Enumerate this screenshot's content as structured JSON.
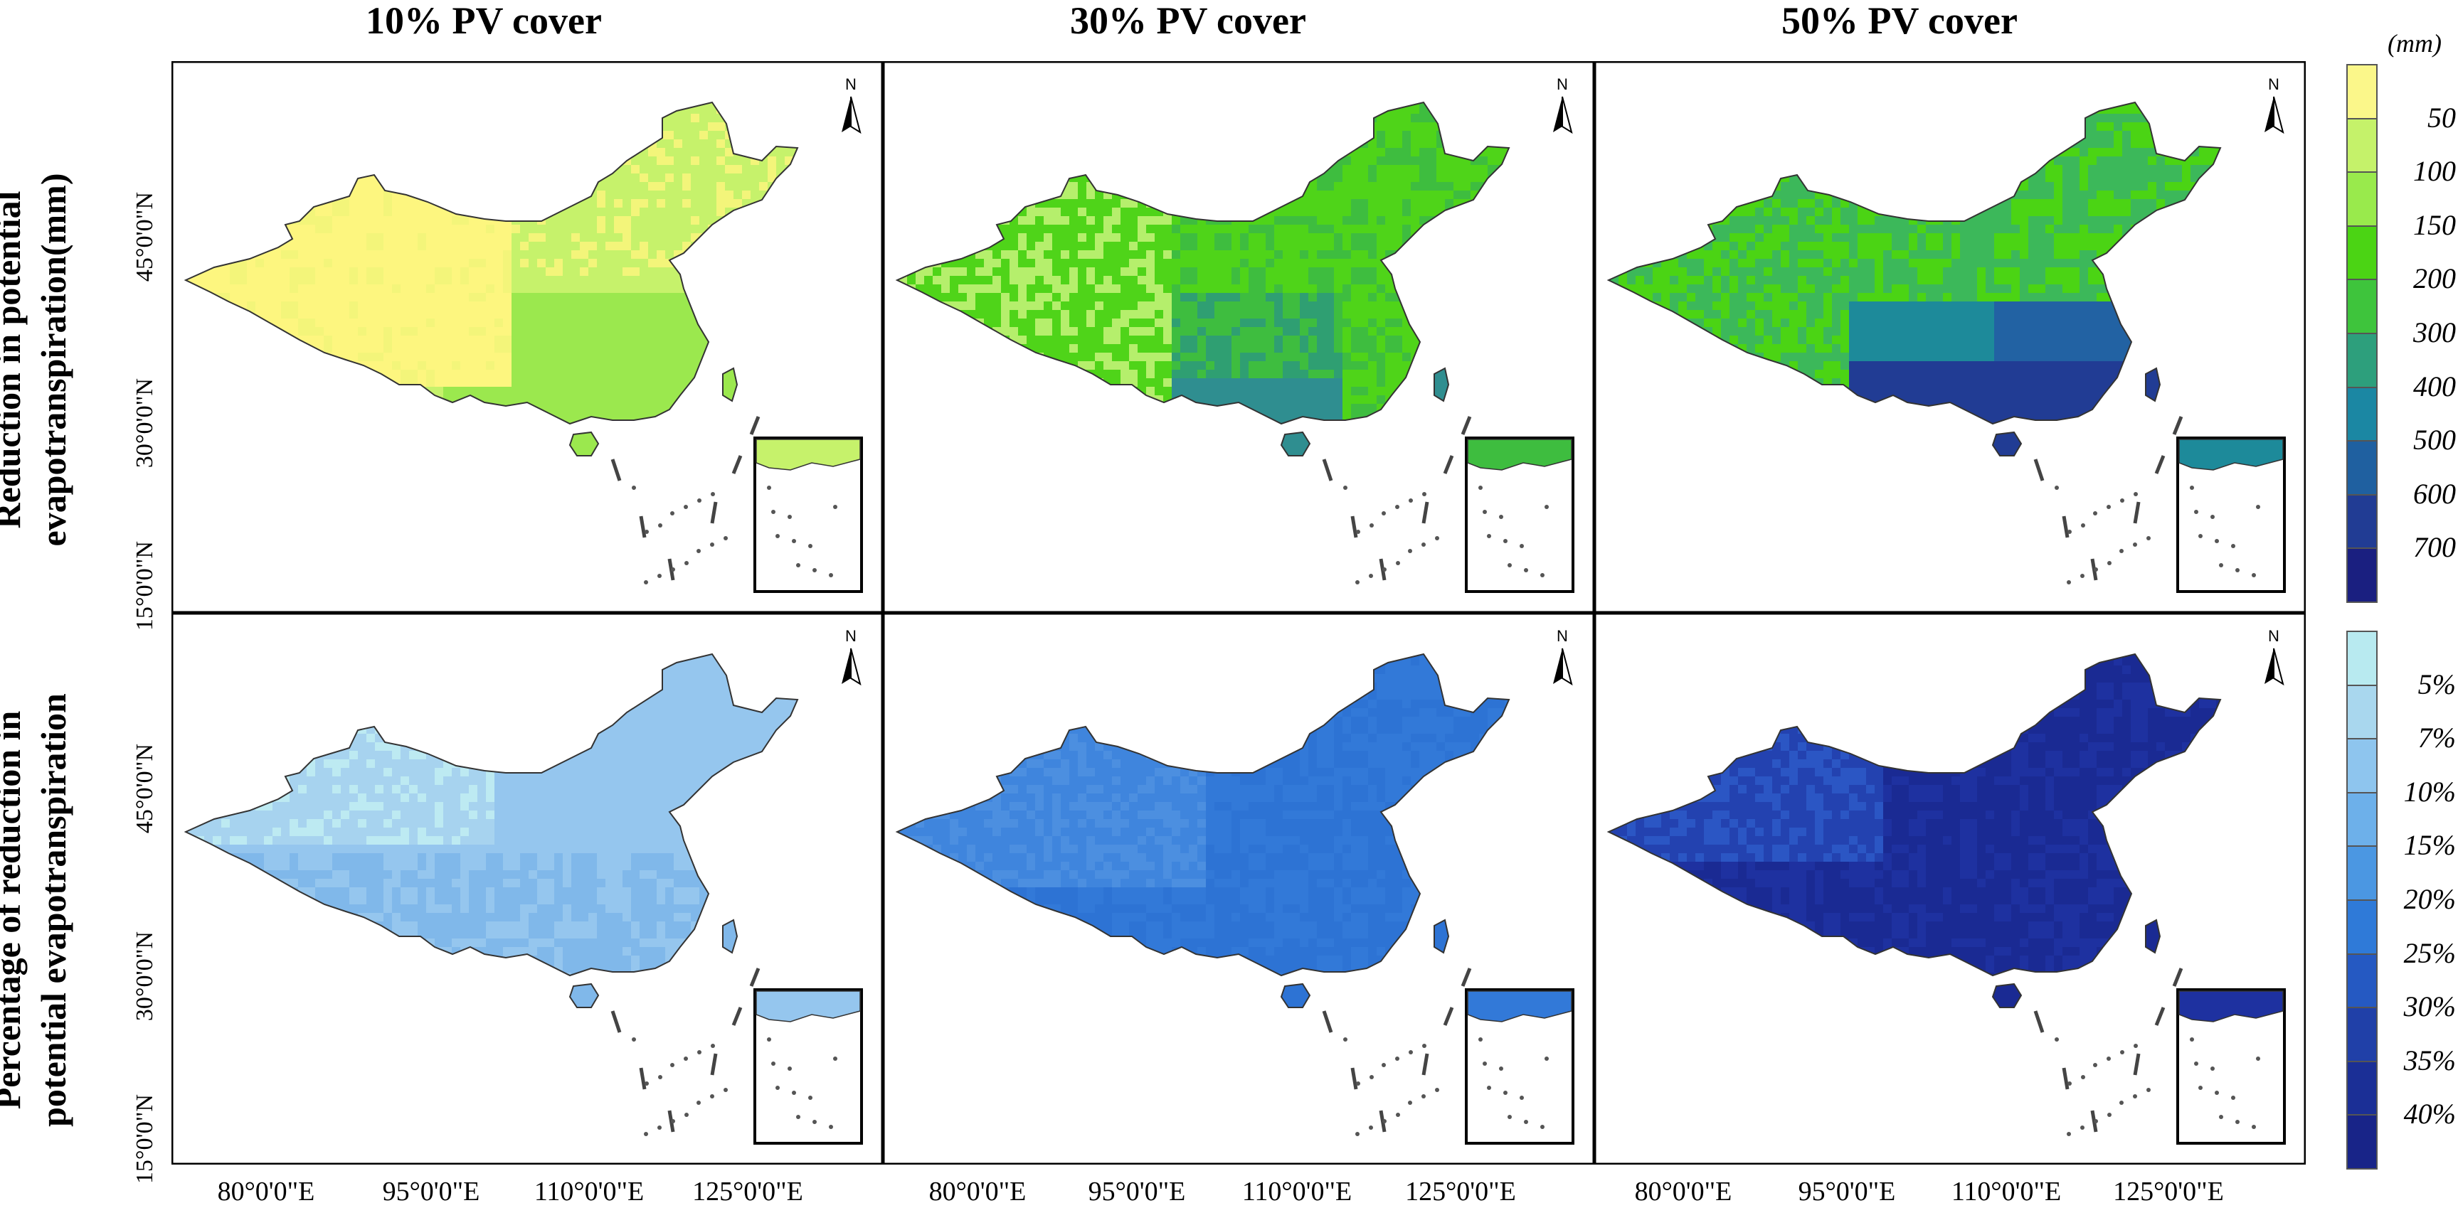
{
  "columns": [
    "10% PV cover",
    "30% PV cover",
    "50% PV cover"
  ],
  "rows": [
    "Reduction in potential evapotranspiration(mm)",
    "Percentage of reduction in potential evapotranspiration"
  ],
  "row_label_lines": [
    [
      "Reduction in potential",
      "evapotranspiration(mm)"
    ],
    [
      "Percentage of reduction in",
      "potential evapotranspiration"
    ]
  ],
  "latitude_ticks": [
    "45°0'0\"N",
    "30°0'0\"N",
    "15°0'0\"N"
  ],
  "longitude_ticks": [
    "80°0'0\"E",
    "95°0'0\"E",
    "110°0'0\"E",
    "125°0'0\"E"
  ],
  "north_arrow_label": "N",
  "legend_top": {
    "unit": "(mm)",
    "labels": [
      "50",
      "100",
      "150",
      "200",
      "300",
      "400",
      "500",
      "600",
      "700"
    ],
    "colors": [
      "#fbf78a",
      "#c5f26a",
      "#99ea4c",
      "#4bd414",
      "#3ec43c",
      "#2d9f7c",
      "#1b87a3",
      "#1f60a0",
      "#213c94",
      "#1a1f80"
    ]
  },
  "legend_bottom": {
    "labels": [
      "5%",
      "7%",
      "10%",
      "15%",
      "20%",
      "25%",
      "30%",
      "35%",
      "40%"
    ],
    "colors": [
      "#b8eaf0",
      "#a9d7ee",
      "#8ec5ee",
      "#6db0ea",
      "#4b97e2",
      "#2f7ad8",
      "#2559c2",
      "#2040a8",
      "#1b2f96",
      "#182488"
    ]
  },
  "panels": [
    {
      "id": "pet-10",
      "palette": [
        "#fdf67f",
        "#f3f57a",
        "#c6f26b",
        "#9be84e"
      ]
    },
    {
      "id": "pet-30",
      "palette": [
        "#b5ef6c",
        "#4fd419",
        "#3ebd3f",
        "#2f9f72",
        "#2f8e90"
      ]
    },
    {
      "id": "pet-50",
      "palette": [
        "#4bd414",
        "#3cb85a",
        "#1d8a9a",
        "#2262a3",
        "#213c94"
      ]
    },
    {
      "id": "pct-10",
      "palette": [
        "#bdeaf2",
        "#a7d3ef",
        "#95c6ee",
        "#80b8ea"
      ]
    },
    {
      "id": "pct-30",
      "palette": [
        "#4c8fe0",
        "#3f85dd",
        "#3279d8",
        "#2d73d4"
      ]
    },
    {
      "id": "pct-50",
      "palette": [
        "#2b56c4",
        "#2342b0",
        "#1e31a0",
        "#1a2a93"
      ]
    }
  ]
}
